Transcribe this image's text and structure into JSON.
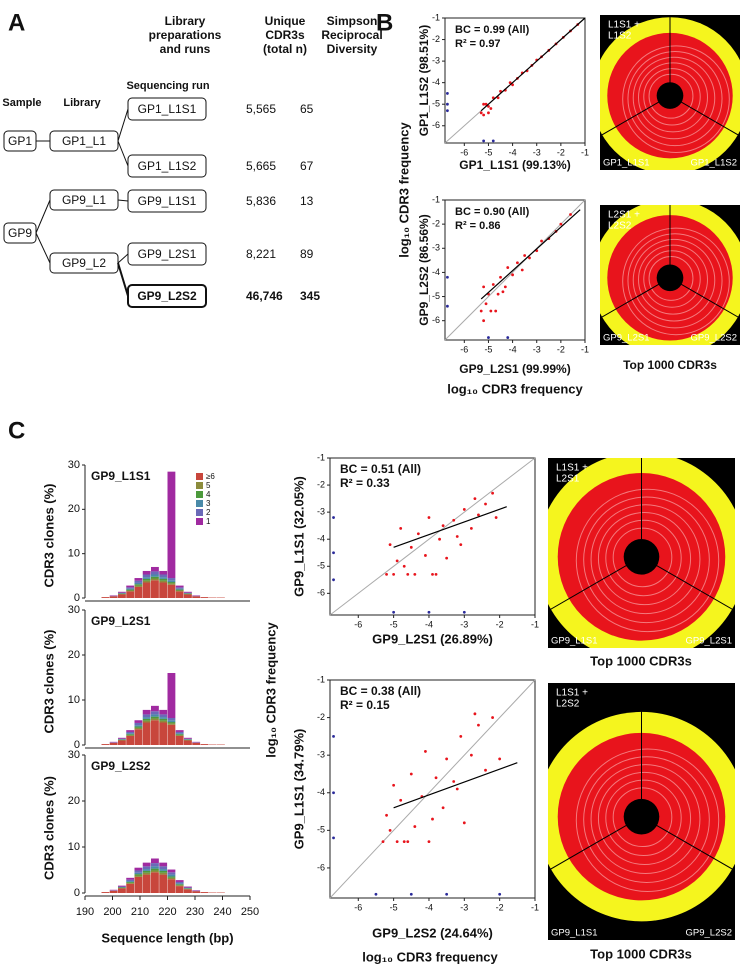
{
  "figure": {
    "panel_labels": [
      "A",
      "B",
      "C"
    ],
    "log_label": "log₁₀ CDR3 frequency",
    "circos_caption": "Top 1000 CDR3s"
  },
  "panel_a": {
    "headers": [
      [
        "Library",
        "preparations",
        "and runs"
      ],
      [
        "Unique",
        "CDR3s",
        "(total n)"
      ],
      [
        "Simpson",
        "Reciprocal",
        "Diversity"
      ]
    ],
    "sequencing_run_label": "Sequencing run",
    "sample_label": "Sample",
    "library_label": "Library",
    "samples": [
      "GP1",
      "GP9"
    ],
    "libraries": [
      "GP1_L1",
      "GP9_L1",
      "GP9_L2"
    ],
    "runs": [
      {
        "name": "GP1_L1S1",
        "unique": "5,565",
        "diversity": "65"
      },
      {
        "name": "GP1_L1S2",
        "unique": "5,665",
        "diversity": "67"
      },
      {
        "name": "GP9_L1S1",
        "unique": "5,836",
        "diversity": "13"
      },
      {
        "name": "GP9_L2S1",
        "unique": "8,221",
        "diversity": "89"
      },
      {
        "name": "GP9_L2S2",
        "unique": "46,746",
        "diversity": "345",
        "bold": true
      }
    ]
  },
  "circos": [
    {
      "label": [
        "L1S1 +",
        "L1S2"
      ],
      "left": "GP1_L1S1",
      "right": "GP1_L1S2"
    },
    {
      "label": [
        "L2S1 +",
        "L2S2"
      ],
      "left": "GP9_L2S1",
      "right": "GP9_L2S2"
    },
    {
      "label": [
        "L1S1 +",
        "L2S1"
      ],
      "left": "GP9_L1S1",
      "right": "GP9_L2S1"
    },
    {
      "label": [
        "L1S1 +",
        "L2S2"
      ],
      "left": "GP9_L1S1",
      "right": "GP9_L2S2"
    }
  ],
  "chart_data": [
    {
      "type": "scatter",
      "annotations": [
        "BC = 0.99 (All)",
        "R² = 0.97"
      ],
      "x_label": "GP1_L1S1 (99.13%)",
      "y_label": "GP1_L1S2 (98.51%)",
      "xlim": [
        -6.8,
        -1
      ],
      "ylim": [
        -6.8,
        -1
      ],
      "xticks": [
        -6,
        -5,
        -4,
        -3,
        -2,
        -1
      ],
      "yticks": [
        -6,
        -5,
        -4,
        -3,
        -2,
        -1
      ],
      "series": [
        {
          "color": "#e8141c",
          "x": [
            -5.3,
            -5.1,
            -5,
            -4.8,
            -4.6,
            -4.5,
            -4.3,
            -4.1,
            -4,
            -3.8,
            -3.6,
            -3.4,
            -3.2,
            -3,
            -2.8,
            -2.5,
            -2.2,
            -1.9,
            -1.6,
            -1.3,
            -5.2,
            -5.2,
            -5.0,
            -4.9
          ],
          "y": [
            -5.4,
            -5.0,
            -5.1,
            -4.7,
            -4.7,
            -4.4,
            -4.35,
            -4.0,
            -4.1,
            -3.8,
            -3.55,
            -3.45,
            -3.2,
            -2.95,
            -2.8,
            -2.5,
            -2.2,
            -1.9,
            -1.6,
            -1.3,
            -5.0,
            -5.5,
            -5.4,
            -5.2
          ]
        },
        {
          "color": "#2a2a9a",
          "x": [
            -6.7,
            -6.7,
            -6.7,
            -5.2,
            -4.8
          ],
          "y": [
            -4.5,
            -5.0,
            -5.3,
            -6.7,
            -6.7
          ]
        }
      ],
      "fit": {
        "x": [
          -5.3,
          -1
        ],
        "y": [
          -5.3,
          -1.0
        ]
      }
    },
    {
      "type": "scatter",
      "annotations": [
        "BC = 0.90 (All)",
        "R² = 0.86"
      ],
      "x_label": "GP9_L2S1 (99.99%)",
      "y_label": "GP9_L2S2 (86.56%)",
      "xlim": [
        -6.8,
        -1
      ],
      "ylim": [
        -6.8,
        -1
      ],
      "xticks": [
        -6,
        -5,
        -4,
        -3,
        -2,
        -1
      ],
      "yticks": [
        -6,
        -5,
        -4,
        -3,
        -2,
        -1
      ],
      "series": [
        {
          "color": "#e8141c",
          "x": [
            -5.3,
            -5.2,
            -5.1,
            -5,
            -4.9,
            -4.8,
            -4.6,
            -4.5,
            -4.3,
            -4.2,
            -4,
            -3.8,
            -3.6,
            -3.5,
            -3.3,
            -3,
            -2.8,
            -2.5,
            -2.2,
            -2,
            -1.6,
            -5.2,
            -4.7,
            -4.4
          ],
          "y": [
            -5.6,
            -4.6,
            -5.3,
            -4.9,
            -5.6,
            -4.5,
            -4.9,
            -4.2,
            -4.6,
            -3.8,
            -4.1,
            -3.6,
            -3.9,
            -3.3,
            -3.4,
            -3.1,
            -2.7,
            -2.6,
            -2.3,
            -2.0,
            -1.6,
            -6.0,
            -5.6,
            -4.8
          ]
        },
        {
          "color": "#2a2a9a",
          "x": [
            -6.7,
            -6.7,
            -5.0,
            -4.2
          ],
          "y": [
            -4.2,
            -5.4,
            -6.7,
            -6.7
          ]
        }
      ],
      "fit": {
        "x": [
          -5.3,
          -1.2
        ],
        "y": [
          -5.1,
          -1.4
        ]
      }
    },
    {
      "type": "histogram",
      "title": "GP9_L1S1",
      "y_label": "CDR3 clones (%)",
      "legend": "top-right",
      "bins": [
        196,
        199,
        202,
        205,
        208,
        211,
        214,
        217,
        220,
        223,
        226,
        229,
        232,
        235,
        238,
        241
      ],
      "xlim": [
        190,
        250
      ],
      "ylim": [
        0,
        30
      ],
      "yticks": [
        0,
        10,
        20,
        30
      ],
      "series": [
        {
          "name": "≥6",
          "color": "#c8463c",
          "values": [
            0.2,
            0.4,
            0.8,
            1.5,
            2.5,
            3.5,
            4,
            3.5,
            3,
            1.5,
            0.8,
            0.4,
            0.2,
            0.1,
            0.1
          ]
        },
        {
          "name": "5",
          "color": "#8c8c3c",
          "values": [
            0,
            0,
            0.1,
            0.2,
            0.3,
            0.4,
            0.4,
            0.4,
            0.3,
            0.2,
            0.1,
            0,
            0,
            0,
            0
          ]
        },
        {
          "name": "4",
          "color": "#4c9a3c",
          "values": [
            0,
            0,
            0.1,
            0.2,
            0.3,
            0.4,
            0.4,
            0.4,
            0.3,
            0.2,
            0.1,
            0,
            0,
            0,
            0
          ]
        },
        {
          "name": "3",
          "color": "#4a8aa8",
          "values": [
            0,
            0,
            0.1,
            0.2,
            0.3,
            0.4,
            0.5,
            0.4,
            0.4,
            0.2,
            0.1,
            0,
            0,
            0,
            0
          ]
        },
        {
          "name": "2",
          "color": "#6a6ab8",
          "values": [
            0,
            0.1,
            0.1,
            0.3,
            0.5,
            0.6,
            0.7,
            0.6,
            0.5,
            0.3,
            0.1,
            0.1,
            0,
            0,
            0
          ]
        },
        {
          "name": "1",
          "color": "#a02aa0",
          "values": [
            0,
            0.1,
            0.2,
            0.4,
            0.6,
            0.8,
            1,
            0.8,
            24,
            0.4,
            0.2,
            0.1,
            0,
            0,
            0
          ]
        }
      ]
    },
    {
      "type": "histogram",
      "title": "GP9_L2S1",
      "y_label": "CDR3 clones (%)",
      "bins": [
        196,
        199,
        202,
        205,
        208,
        211,
        214,
        217,
        220,
        223,
        226,
        229,
        232,
        235,
        238,
        241
      ],
      "xlim": [
        190,
        250
      ],
      "ylim": [
        0,
        30
      ],
      "yticks": [
        0,
        10,
        20,
        30
      ],
      "series": [
        {
          "color": "#c8463c",
          "values": [
            0.2,
            0.5,
            1,
            2,
            3.5,
            5,
            5.5,
            5,
            4.5,
            2,
            1,
            0.5,
            0.2,
            0.1,
            0.1
          ]
        },
        {
          "color": "#8c8c3c",
          "values": [
            0,
            0,
            0.1,
            0.2,
            0.3,
            0.4,
            0.4,
            0.4,
            0.3,
            0.2,
            0.1,
            0,
            0,
            0,
            0
          ]
        },
        {
          "color": "#4c9a3c",
          "values": [
            0,
            0,
            0.1,
            0.2,
            0.3,
            0.4,
            0.4,
            0.4,
            0.3,
            0.2,
            0.1,
            0,
            0,
            0,
            0
          ]
        },
        {
          "color": "#4a8aa8",
          "values": [
            0,
            0,
            0.1,
            0.2,
            0.3,
            0.4,
            0.5,
            0.4,
            0.4,
            0.2,
            0.1,
            0,
            0,
            0,
            0
          ]
        },
        {
          "color": "#6a6ab8",
          "values": [
            0,
            0.1,
            0.1,
            0.3,
            0.5,
            0.6,
            0.7,
            0.6,
            0.5,
            0.3,
            0.1,
            0.1,
            0,
            0,
            0
          ]
        },
        {
          "color": "#a02aa0",
          "values": [
            0,
            0.1,
            0.2,
            0.4,
            0.6,
            1,
            1.2,
            1,
            10,
            0.4,
            0.2,
            0.1,
            0,
            0,
            0
          ]
        }
      ]
    },
    {
      "type": "histogram",
      "title": "GP9_L2S2",
      "y_label": "CDR3 clones (%)",
      "x_label": "Sequence length (bp)",
      "bins": [
        196,
        199,
        202,
        205,
        208,
        211,
        214,
        217,
        220,
        223,
        226,
        229,
        232,
        235,
        238,
        241
      ],
      "xlim": [
        190,
        250
      ],
      "ylim": [
        0,
        30
      ],
      "yticks": [
        0,
        10,
        20,
        30
      ],
      "xticks": [
        190,
        200,
        210,
        220,
        230,
        240,
        250
      ],
      "series": [
        {
          "color": "#c8463c",
          "values": [
            0.2,
            0.5,
            1,
            2,
            3.5,
            4,
            4.5,
            4,
            3,
            1.5,
            0.8,
            0.4,
            0.2,
            0.1,
            0.1
          ]
        },
        {
          "color": "#8c8c3c",
          "values": [
            0,
            0,
            0.1,
            0.2,
            0.3,
            0.4,
            0.4,
            0.4,
            0.3,
            0.2,
            0.1,
            0,
            0,
            0,
            0
          ]
        },
        {
          "color": "#4c9a3c",
          "values": [
            0,
            0,
            0.1,
            0.2,
            0.3,
            0.4,
            0.4,
            0.4,
            0.3,
            0.2,
            0.1,
            0,
            0,
            0,
            0
          ]
        },
        {
          "color": "#4a8aa8",
          "values": [
            0,
            0,
            0.1,
            0.2,
            0.3,
            0.4,
            0.5,
            0.4,
            0.4,
            0.2,
            0.1,
            0,
            0,
            0,
            0
          ]
        },
        {
          "color": "#6a6ab8",
          "values": [
            0,
            0.1,
            0.1,
            0.3,
            0.5,
            0.6,
            0.7,
            0.6,
            0.5,
            0.3,
            0.1,
            0.1,
            0,
            0,
            0
          ]
        },
        {
          "color": "#a02aa0",
          "values": [
            0,
            0.1,
            0.2,
            0.4,
            0.6,
            0.8,
            1,
            0.8,
            0.6,
            0.4,
            0.2,
            0.1,
            0,
            0,
            0
          ]
        }
      ]
    },
    {
      "type": "scatter",
      "annotations": [
        "BC = 0.51 (All)",
        "R² = 0.33"
      ],
      "x_label": "GP9_L2S1 (26.89%)",
      "y_label": "GP9_L1S1 (32.05%)",
      "xlim": [
        -6.8,
        -1
      ],
      "ylim": [
        -6.8,
        -1
      ],
      "xticks": [
        -6,
        -5,
        -4,
        -3,
        -2,
        -1
      ],
      "yticks": [
        -6,
        -5,
        -4,
        -3,
        -2,
        -1
      ],
      "series": [
        {
          "color": "#e8141c",
          "x": [
            -5.2,
            -5.1,
            -5,
            -4.9,
            -4.8,
            -4.7,
            -4.5,
            -4.4,
            -4.3,
            -4.1,
            -4,
            -3.9,
            -3.7,
            -3.6,
            -3.5,
            -3.3,
            -3.2,
            -3,
            -2.8,
            -2.6,
            -2.4,
            -2.2,
            -2.1,
            -4.6,
            -3.8,
            -3.1,
            -2.7
          ],
          "y": [
            -5.3,
            -4.2,
            -5.3,
            -4.8,
            -3.6,
            -5.0,
            -4.3,
            -5.3,
            -3.8,
            -4.6,
            -3.2,
            -5.3,
            -4.0,
            -3.5,
            -4.7,
            -3.3,
            -3.9,
            -2.9,
            -3.6,
            -3.1,
            -2.7,
            -2.3,
            -3.2,
            -5.3,
            -5.3,
            -4.2,
            -2.5
          ]
        },
        {
          "color": "#2a2a9a",
          "x": [
            -6.7,
            -6.7,
            -6.7,
            -5.0,
            -4.0,
            -3.0
          ],
          "y": [
            -3.2,
            -4.5,
            -5.5,
            -6.7,
            -6.7,
            -6.7
          ]
        }
      ],
      "fit": {
        "x": [
          -5,
          -1.8
        ],
        "y": [
          -4.3,
          -2.8
        ]
      }
    },
    {
      "type": "scatter",
      "annotations": [
        "BC = 0.38 (All)",
        "R² = 0.15"
      ],
      "x_label": "GP9_L2S2 (24.64%)",
      "y_label": "GP9_L1S1 (34.79%)",
      "xlim": [
        -6.8,
        -1
      ],
      "ylim": [
        -6.8,
        -1
      ],
      "xticks": [
        -6,
        -5,
        -4,
        -3,
        -2,
        -1
      ],
      "yticks": [
        -6,
        -5,
        -4,
        -3,
        -2,
        -1
      ],
      "series": [
        {
          "color": "#e8141c",
          "x": [
            -5.3,
            -5.2,
            -5.1,
            -5,
            -4.9,
            -4.8,
            -4.7,
            -4.5,
            -4.4,
            -4.2,
            -4.1,
            -4,
            -3.8,
            -3.6,
            -3.5,
            -3.3,
            -3.1,
            -3,
            -2.8,
            -2.6,
            -2.4,
            -2.2,
            -2,
            -4.6,
            -3.9,
            -3.2,
            -2.7
          ],
          "y": [
            -5.3,
            -4.6,
            -5.0,
            -3.8,
            -5.3,
            -4.2,
            -5.3,
            -3.5,
            -4.9,
            -4.1,
            -2.9,
            -5.3,
            -3.6,
            -4.4,
            -3.1,
            -3.7,
            -2.5,
            -4.8,
            -3.0,
            -2.2,
            -3.4,
            -2.0,
            -3.1,
            -5.3,
            -4.7,
            -3.9,
            -1.9
          ]
        },
        {
          "color": "#2a2a9a",
          "x": [
            -6.7,
            -6.7,
            -6.7,
            -5.5,
            -4.5,
            -3.5,
            -2.0
          ],
          "y": [
            -2.5,
            -4.0,
            -5.2,
            -6.7,
            -6.7,
            -6.7,
            -6.7
          ]
        }
      ],
      "fit": {
        "x": [
          -5,
          -1.5
        ],
        "y": [
          -4.4,
          -3.2
        ]
      }
    }
  ]
}
